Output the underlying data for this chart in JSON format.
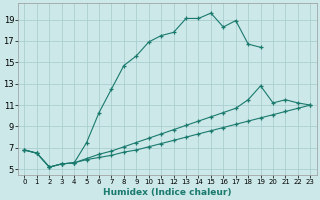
{
  "xlabel": "Humidex (Indice chaleur)",
  "bg_color": "#cce8e8",
  "grid_color": "#aacfcf",
  "line_color": "#1a7a6e",
  "xlim": [
    -0.5,
    23.5
  ],
  "ylim": [
    4.5,
    20.5
  ],
  "xticks": [
    0,
    1,
    2,
    3,
    4,
    5,
    6,
    7,
    8,
    9,
    10,
    11,
    12,
    13,
    14,
    15,
    16,
    17,
    18,
    19,
    20,
    21,
    22,
    23
  ],
  "yticks": [
    5,
    7,
    9,
    11,
    13,
    15,
    17,
    19
  ],
  "line1_x": [
    0,
    1,
    2,
    3,
    4,
    5,
    6,
    7,
    8,
    9,
    10,
    11,
    12,
    13,
    14,
    15,
    16,
    17,
    18,
    19
  ],
  "line1_y": [
    6.8,
    6.5,
    5.2,
    5.5,
    5.6,
    7.5,
    10.3,
    12.5,
    14.7,
    15.6,
    16.9,
    17.5,
    17.8,
    19.1,
    19.1,
    19.6,
    18.3,
    18.9,
    16.7,
    16.4
  ],
  "line2_x": [
    0,
    1,
    2,
    3,
    4,
    5,
    6,
    7,
    8,
    9,
    10,
    11,
    12,
    13,
    14,
    15,
    16,
    17,
    18,
    19,
    20,
    21,
    22,
    23
  ],
  "line2_y": [
    6.8,
    6.5,
    5.2,
    5.5,
    5.6,
    6.0,
    6.4,
    6.7,
    7.1,
    7.5,
    7.9,
    8.3,
    8.7,
    9.1,
    9.5,
    9.9,
    10.3,
    10.7,
    11.5,
    12.8,
    11.2,
    11.5,
    11.2,
    11.0
  ],
  "line3_x": [
    0,
    1,
    2,
    3,
    4,
    5,
    6,
    7,
    8,
    9,
    10,
    11,
    12,
    13,
    14,
    15,
    16,
    17,
    18,
    19,
    20,
    21,
    22,
    23
  ],
  "line3_y": [
    6.8,
    6.5,
    5.2,
    5.5,
    5.6,
    5.9,
    6.1,
    6.3,
    6.6,
    6.8,
    7.1,
    7.4,
    7.7,
    8.0,
    8.3,
    8.6,
    8.9,
    9.2,
    9.5,
    9.8,
    10.1,
    10.4,
    10.7,
    11.0
  ]
}
